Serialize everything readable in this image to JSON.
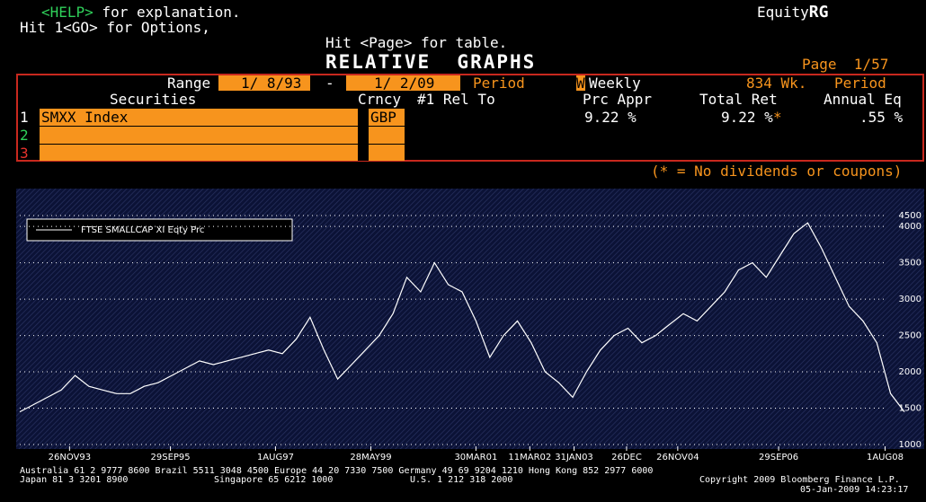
{
  "header": {
    "help_key": "<HELP>",
    "help_text": " for explanation.",
    "options": "Hit 1<GO> for Options,",
    "page_hint": "Hit <Page> for table.",
    "function_prefix": "Equity",
    "function_code": "RG",
    "title": "RELATIVE  GRAPHS",
    "page": "Page  1/57"
  },
  "range": {
    "label": "Range",
    "start": "1/ 8/93",
    "separator": "-",
    "end": "1/ 2/09",
    "period_label": "Period",
    "period_code": "W",
    "period_name": "Weekly",
    "weeks": "834 Wk.",
    "period2": "Period"
  },
  "table": {
    "columns": [
      "Securities",
      "Crncy",
      "#1 Rel To",
      "Prc Appr",
      "Total Ret",
      "Annual Eq"
    ],
    "rows": [
      {
        "num": "1",
        "security": "SMXX Index",
        "currency": "GBP",
        "price_appr": "9.22 %",
        "total_ret": "9.22 %",
        "flag": "*",
        "annual": ".55 %"
      },
      {
        "num": "2"
      },
      {
        "num": "3"
      }
    ]
  },
  "note": "(* = No dividends or coupons)",
  "chart_data": {
    "type": "line",
    "series": [
      {
        "name": "FTSE SMALLCAP XI Eqty Prc",
        "color": "#ffffff",
        "values": [
          1450,
          1550,
          1650,
          1750,
          1950,
          1800,
          1750,
          1700,
          1700,
          1800,
          1850,
          1950,
          2050,
          2150,
          2100,
          2150,
          2200,
          2250,
          2300,
          2250,
          2450,
          2750,
          2300,
          1900,
          2100,
          2300,
          2500,
          2800,
          3300,
          3100,
          3500,
          3200,
          3100,
          2700,
          2200,
          2500,
          2700,
          2400,
          2000,
          1850,
          1650,
          2000,
          2300,
          2500,
          2600,
          2400,
          2500,
          2650,
          2800,
          2700,
          2900,
          3100,
          3400,
          3500,
          3300,
          3600,
          3900,
          4050,
          3700,
          3300,
          2900,
          2700,
          2400,
          1700,
          1450
        ]
      }
    ],
    "xlim": [
      0,
      64
    ],
    "xticks": [
      {
        "value": 3.6,
        "label": "26NOV93"
      },
      {
        "value": 10.9,
        "label": "29SEP95"
      },
      {
        "value": 18.5,
        "label": "1AUG97"
      },
      {
        "value": 25.4,
        "label": "28MAY99"
      },
      {
        "value": 33.0,
        "label": "30MAR01"
      },
      {
        "value": 36.9,
        "label": "11MAR02"
      },
      {
        "value": 40.1,
        "label": "31JAN03"
      },
      {
        "value": 43.9,
        "label": "26DEC"
      },
      {
        "value": 47.6,
        "label": "26NOV04"
      },
      {
        "value": 54.9,
        "label": "29SEP06"
      },
      {
        "value": 62.6,
        "label": "1AUG08"
      }
    ],
    "ylim": [
      1000,
      4150
    ],
    "yticks": [
      1000,
      1500,
      2000,
      2500,
      3000,
      3500,
      4000,
      4500
    ],
    "grid": true
  },
  "footer": {
    "line1": "Australia 61 2 9777 8600 Brazil 5511 3048 4500 Europe 44 20 7330 7500 Germany 49 69 9204 1210 Hong Kong 852 2977 6000",
    "japan": "Japan 81 3 3201 8900",
    "singapore": "Singapore 65 6212 1000",
    "us": "U.S. 1 212 318 2000",
    "copyright": "Copyright 2009 Bloomberg Finance L.P.",
    "timestamp": "05-Jan-2009 14:23:17"
  }
}
